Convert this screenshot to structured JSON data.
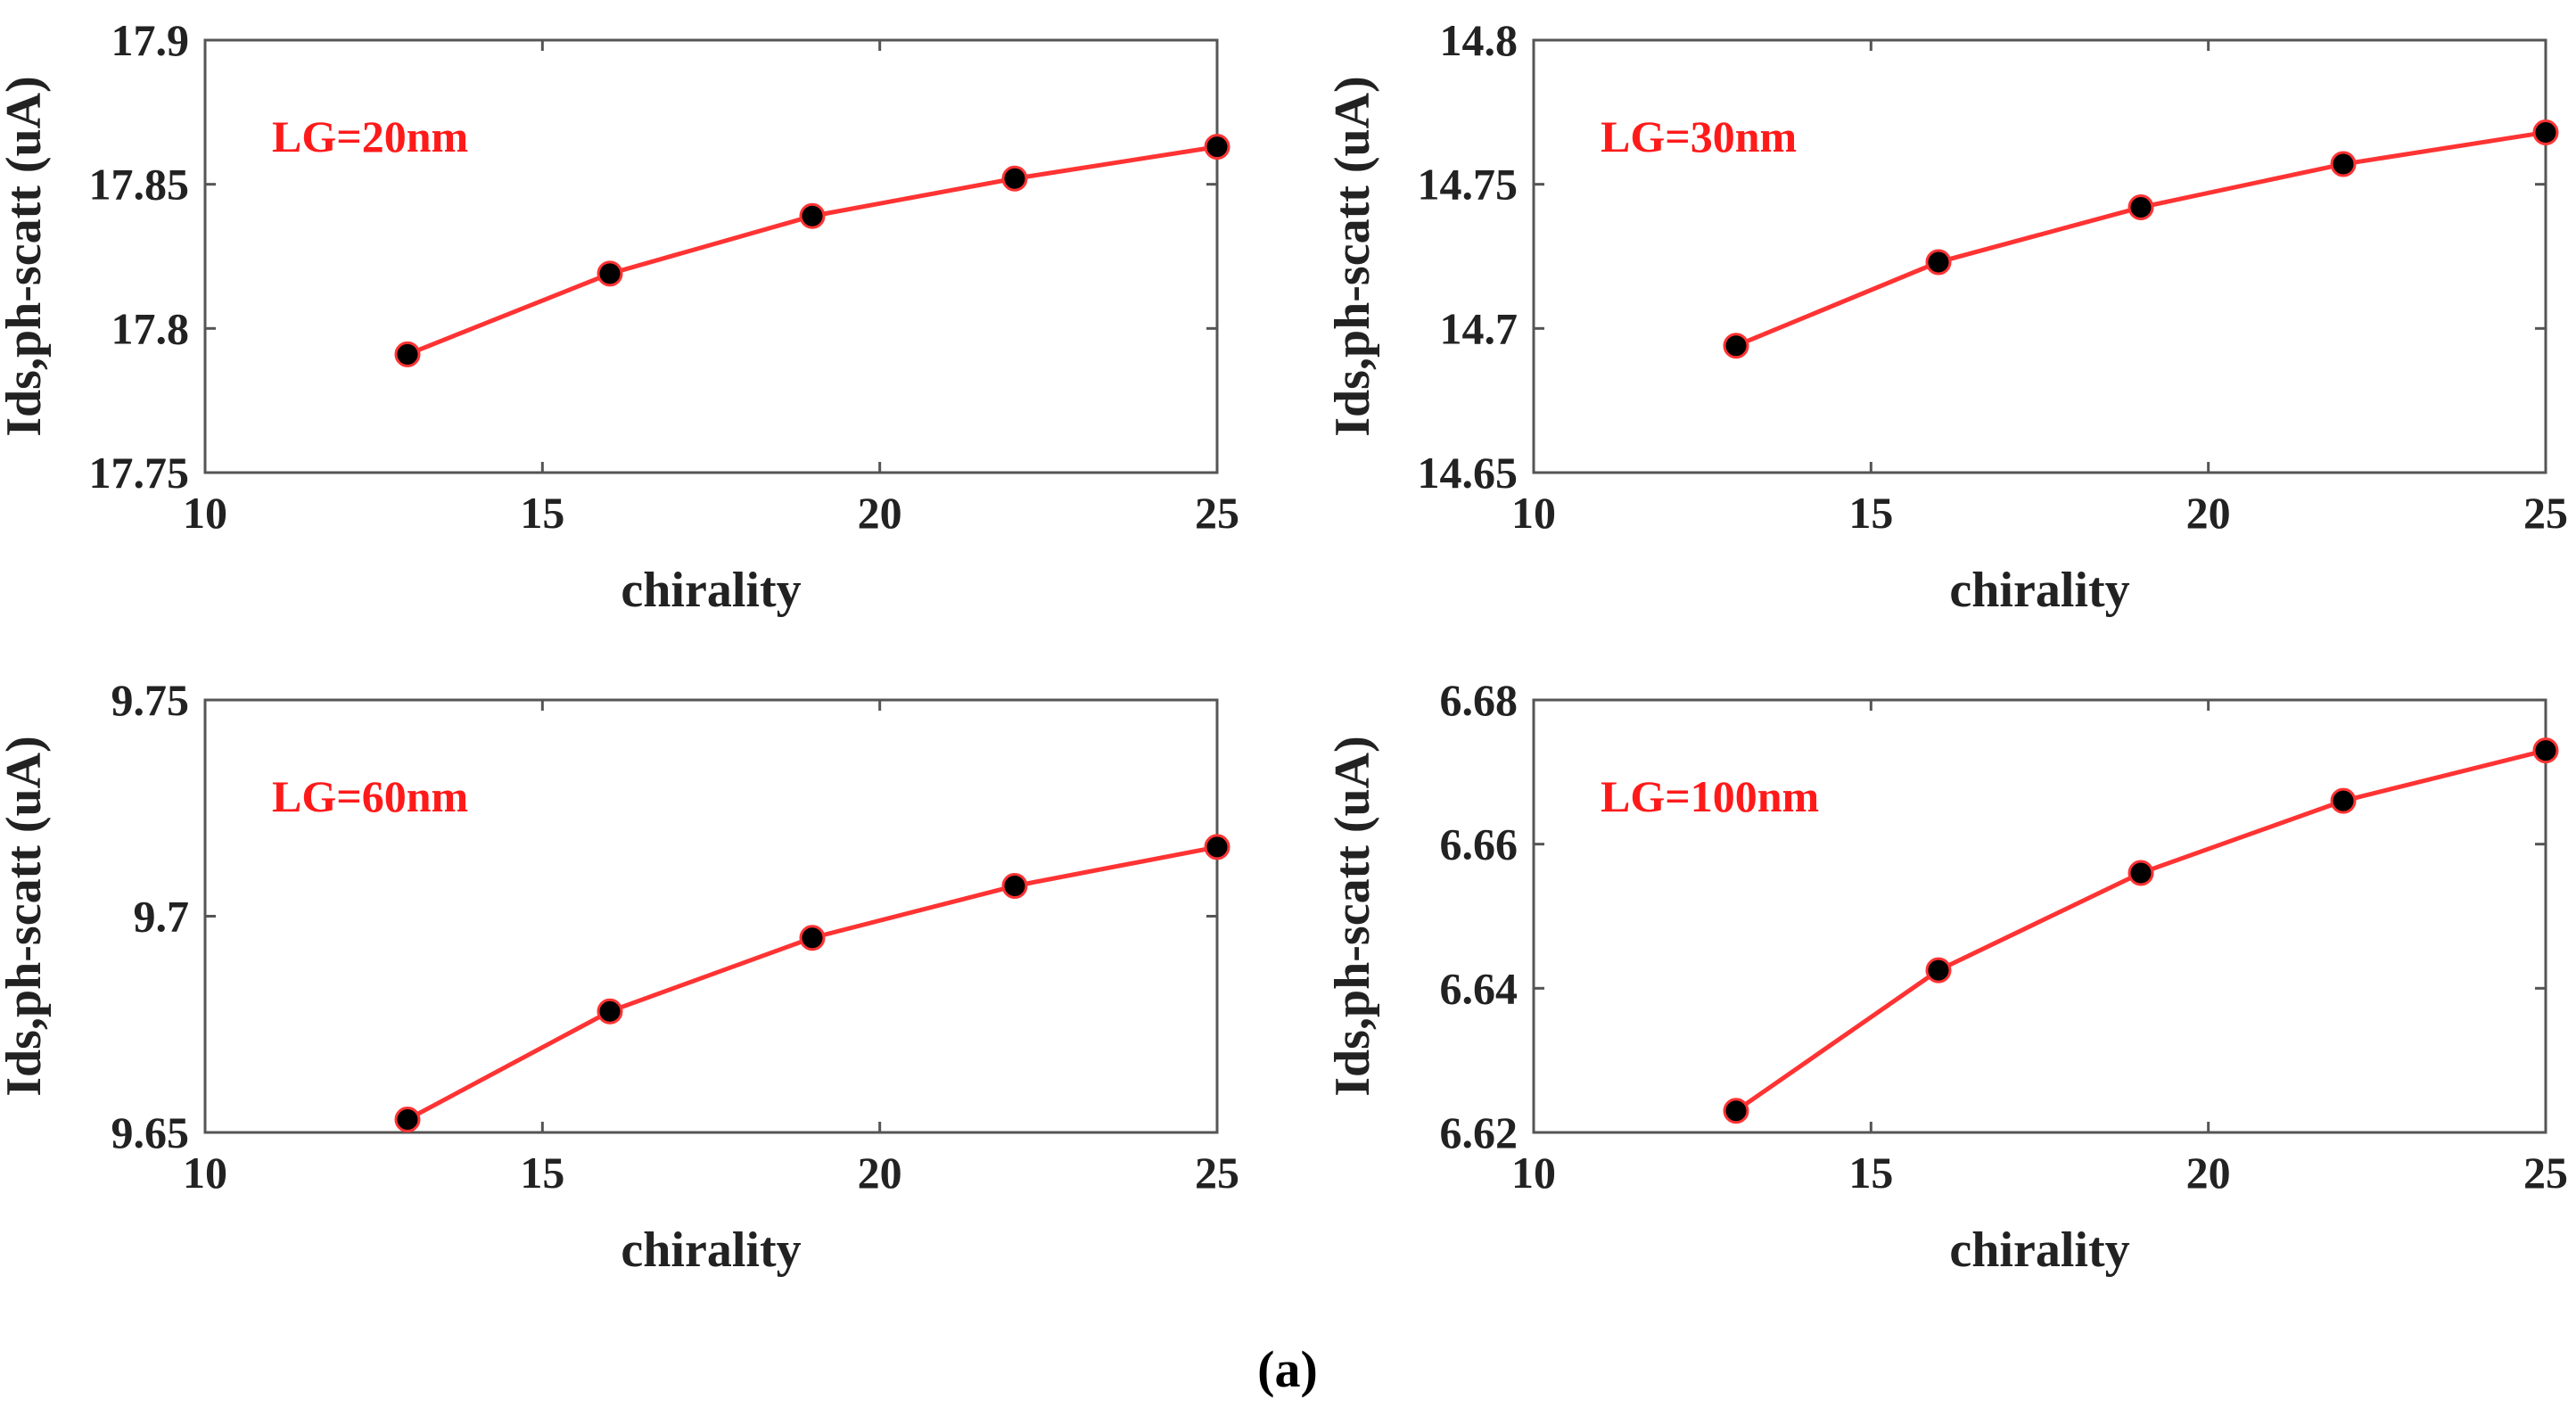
{
  "caption": "(a)",
  "colors": {
    "line": "#ff3333",
    "marker": "#000000",
    "annotation": "#ff1a1a",
    "axis": "#555555"
  },
  "chart_data": [
    {
      "type": "line",
      "annotation": "LG=20nm",
      "xlabel": "chirality",
      "ylabel": "Ids,ph-scatt (uA)",
      "xlim": [
        10,
        25
      ],
      "ylim": [
        17.75,
        17.9
      ],
      "xticks": [
        "10",
        "15",
        "20",
        "25"
      ],
      "yticks": [
        "17.75",
        "17.8",
        "17.85",
        "17.9"
      ],
      "x": [
        13,
        16,
        19,
        22,
        25
      ],
      "values": [
        17.791,
        17.819,
        17.839,
        17.852,
        17.863
      ]
    },
    {
      "type": "line",
      "annotation": "LG=30nm",
      "xlabel": "chirality",
      "ylabel": "Ids,ph-scatt (uA)",
      "xlim": [
        10,
        25
      ],
      "ylim": [
        14.65,
        14.8
      ],
      "xticks": [
        "10",
        "15",
        "20",
        "25"
      ],
      "yticks": [
        "14.65",
        "14.7",
        "14.75",
        "14.8"
      ],
      "x": [
        13,
        16,
        19,
        22,
        25
      ],
      "values": [
        14.694,
        14.723,
        14.742,
        14.757,
        14.768
      ]
    },
    {
      "type": "line",
      "annotation": "LG=60nm",
      "xlabel": "chirality",
      "ylabel": "Ids,ph-scatt (uA)",
      "xlim": [
        10,
        25
      ],
      "ylim": [
        9.65,
        9.75
      ],
      "xticks": [
        "10",
        "15",
        "20",
        "25"
      ],
      "yticks": [
        "9.65",
        "9.7",
        "9.75"
      ],
      "x": [
        13,
        16,
        19,
        22,
        25
      ],
      "values": [
        9.653,
        9.678,
        9.695,
        9.707,
        9.716
      ]
    },
    {
      "type": "line",
      "annotation": "LG=100nm",
      "xlabel": "chirality",
      "ylabel": "Ids,ph-scatt (uA)",
      "xlim": [
        10,
        25
      ],
      "ylim": [
        6.62,
        6.68
      ],
      "xticks": [
        "10",
        "15",
        "20",
        "25"
      ],
      "yticks": [
        "6.62",
        "6.64",
        "6.66",
        "6.68"
      ],
      "x": [
        13,
        16,
        19,
        22,
        25
      ],
      "values": [
        6.623,
        6.6425,
        6.656,
        6.666,
        6.673
      ]
    }
  ]
}
